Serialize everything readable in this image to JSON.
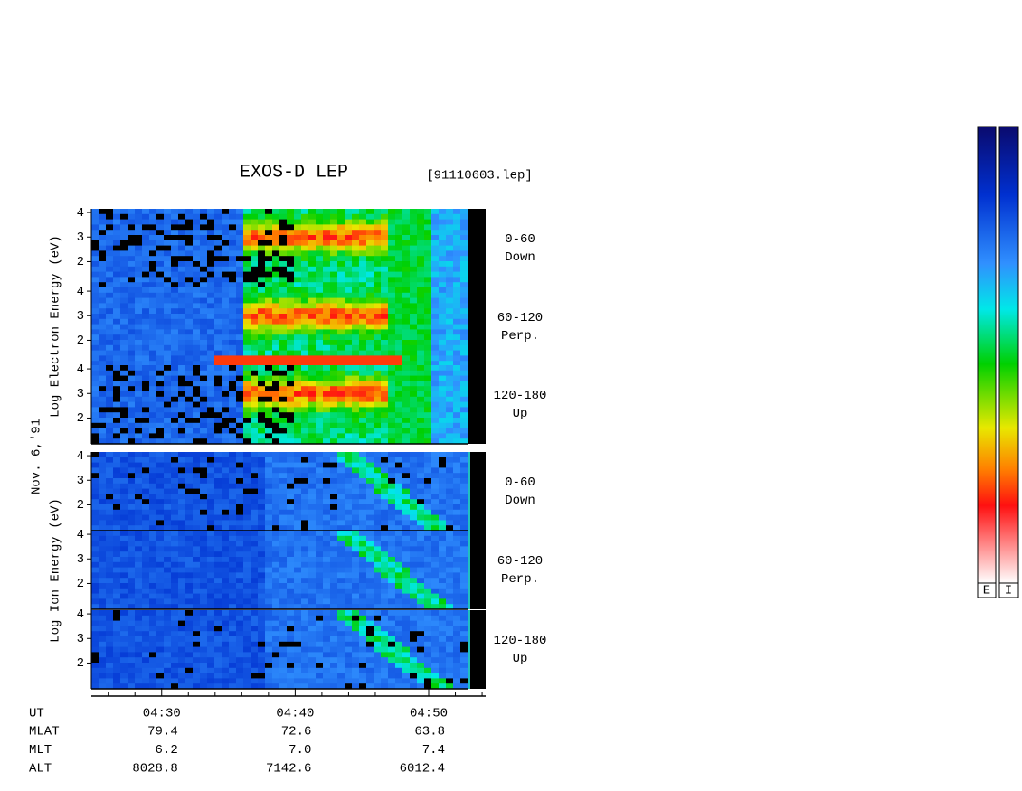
{
  "chart_data": {
    "type": "spectrogram",
    "title": "EXOS-D LEP",
    "file": "[91110603.lep]",
    "date": "Nov. 6,'91",
    "xlim": [
      "04:24:44",
      "04:54:16"
    ],
    "xticks": [
      "04:30",
      "04:40",
      "04:50"
    ],
    "xminorticks": [
      "04:26",
      "04:28",
      "04:32",
      "04:34",
      "04:36",
      "04:38",
      "04:42",
      "04:44",
      "04:46",
      "04:48",
      "04:52",
      "04:54"
    ],
    "ylim": [
      0.95,
      4.15
    ],
    "yticks": [
      2,
      3,
      4
    ],
    "groups": [
      {
        "ylabel": "Log Electron Energy (eV)",
        "panels": [
          {
            "angle": "0-60",
            "direction": "Down"
          },
          {
            "angle": "60-120",
            "direction": "Perp."
          },
          {
            "angle": "120-180",
            "direction": "Up"
          }
        ]
      },
      {
        "ylabel": "Log Ion Energy (eV)",
        "panels": [
          {
            "angle": "0-60",
            "direction": "Down"
          },
          {
            "angle": "60-120",
            "direction": "Perp."
          },
          {
            "angle": "120-180",
            "direction": "Up"
          }
        ]
      }
    ],
    "table": {
      "time_label": "UT",
      "rows": [
        {
          "label": "MLAT",
          "values": [
            "79.4",
            "72.6",
            "63.8"
          ]
        },
        {
          "label": "MLT",
          "values": [
            "6.2",
            "7.0",
            "7.4"
          ]
        },
        {
          "label": "ALT",
          "values": [
            "8028.8",
            "7142.6",
            "6012.4"
          ]
        }
      ]
    },
    "colorbar_labels": [
      "E",
      "I"
    ]
  }
}
